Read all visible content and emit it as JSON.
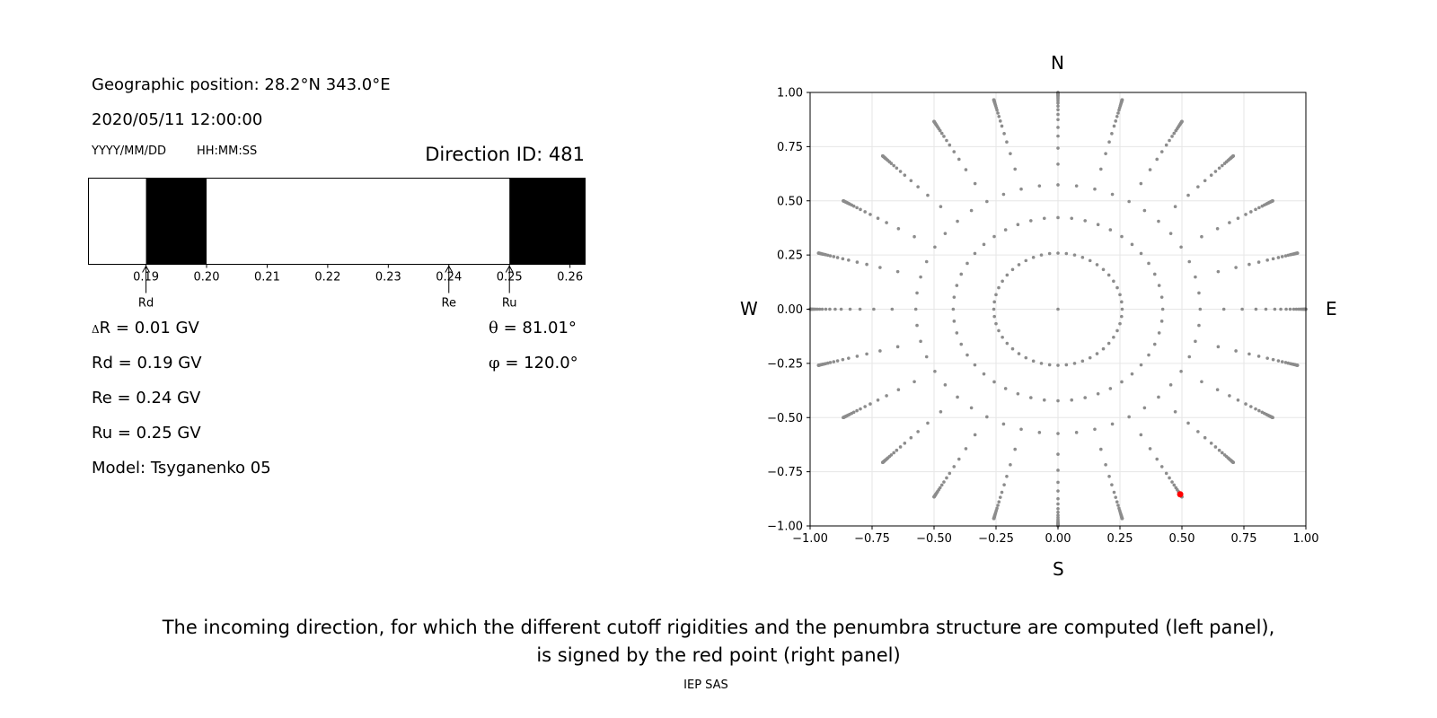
{
  "left_panel": {
    "geo_position": "Geographic position: 28.2°N 343.0°E",
    "datetime": "2020/05/11 12:00:00",
    "date_format": "YYYY/MM/DD",
    "time_format": "HH:MM:SS",
    "direction_id": "Direction ID: 481",
    "delta_r": {
      "symbol": "Δ",
      "text": "R = 0.01 GV"
    },
    "theta": {
      "symbol": "θ",
      "text": " = 81.01°"
    },
    "phi": {
      "symbol": "φ",
      "text": " = 120.0°"
    },
    "rd": "Rd = 0.19 GV",
    "re": "Re = 0.24 GV",
    "ru": "Ru = 0.25 GV",
    "model": "Model: Tsyganenko 05"
  },
  "right_panel": {
    "compass": {
      "n": "N",
      "s": "S",
      "e": "E",
      "w": "W"
    }
  },
  "caption": {
    "line1": "The incoming direction, for which the different cutoff rigidities and the penumbra structure are computed (left panel),",
    "line2": "is signed by the red point (right panel)",
    "footer": "IEP SAS"
  },
  "colors": {
    "forbidden": "#000000",
    "allowed": "#ffffff",
    "grid_point": "#8c8c8c",
    "selected_point": "#ff0000"
  },
  "chart_data": [
    {
      "type": "penumbra-bar",
      "xlim": [
        0.1805,
        0.2625
      ],
      "ticks": [
        "0.19",
        "0.20",
        "0.21",
        "0.22",
        "0.23",
        "0.24",
        "0.25",
        "0.26"
      ],
      "tick_values": [
        0.19,
        0.2,
        0.21,
        0.22,
        0.23,
        0.24,
        0.25,
        0.26
      ],
      "forbidden_intervals": [
        [
          0.19,
          0.2
        ],
        [
          0.25,
          0.2625
        ]
      ],
      "markers": [
        {
          "label": "Rd",
          "value": 0.19
        },
        {
          "label": "Re",
          "value": 0.24
        },
        {
          "label": "Ru",
          "value": 0.25
        }
      ]
    },
    {
      "type": "scatter",
      "xlim": [
        -1.0,
        1.0
      ],
      "ylim": [
        -1.0,
        1.0
      ],
      "grid": true,
      "xticks": [
        "−1.00",
        "−0.75",
        "−0.50",
        "−0.25",
        "0.00",
        "0.25",
        "0.50",
        "0.75",
        "1.00"
      ],
      "yticks": [
        "1.00",
        "0.75",
        "0.50",
        "0.25",
        "0.00",
        "−0.25",
        "−0.50",
        "−0.75",
        "−1.00"
      ],
      "tick_values": [
        -1.0,
        -0.75,
        -0.5,
        -0.25,
        0.0,
        0.25,
        0.5,
        0.75,
        1.0
      ],
      "grid_pattern": {
        "description": "directions on concentric rings of radius sin(zenith), 24 azimuths",
        "azimuth_step_deg": 15,
        "zenith_deg_list": [
          0,
          15,
          25,
          35,
          42,
          48,
          53,
          57,
          61,
          64,
          67,
          69.5,
          72,
          74,
          76,
          77.5,
          79,
          80,
          81.01,
          82,
          83,
          84,
          85,
          86,
          87,
          88,
          89,
          90
        ]
      },
      "highlight": {
        "x": 0.493,
        "y": -0.854
      }
    }
  ]
}
